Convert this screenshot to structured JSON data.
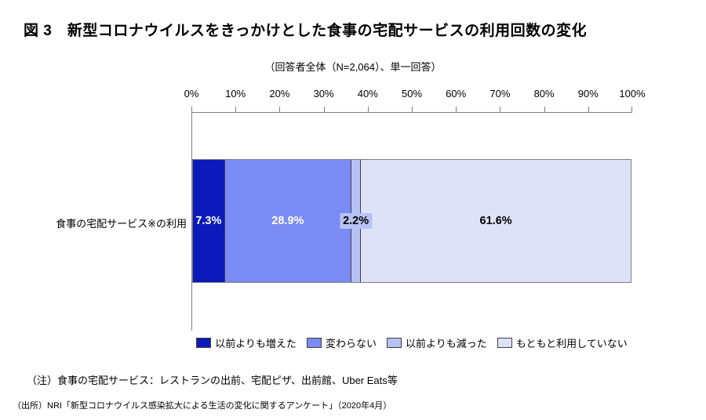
{
  "title": "図 3　新型コロナウイルスをきっかけとした食事の宅配サービスの利用回数の変化",
  "subtitle": "（回答者全体（N=2,064）、単一回答）",
  "note": "（注）食事の宅配サービス：レストランの出前、宅配ピザ、出前館、Uber Eats等",
  "source": "（出所）NRI「新型コロナウイルス感染拡大による生活の変化に関するアンケート」（2020年4月）",
  "chart_data": {
    "type": "bar",
    "orientation": "horizontal-stacked",
    "categories": [
      "食事の宅配サービス※の利用"
    ],
    "series": [
      {
        "name": "以前よりも増えた",
        "values": [
          7.3
        ],
        "color": "#0b1ab8",
        "label_color": "#ffffff",
        "label_chip": false
      },
      {
        "name": "変わらない",
        "values": [
          28.9
        ],
        "color": "#7b8bf4",
        "label_color": "#ffffff",
        "label_chip": false
      },
      {
        "name": "以前よりも減った",
        "values": [
          2.2
        ],
        "color": "#b7c2f4",
        "label_color": "#000000",
        "label_chip": true
      },
      {
        "name": "もともと利用していない",
        "values": [
          61.6
        ],
        "color": "#dee2f8",
        "label_color": "#000000",
        "label_chip": false
      }
    ],
    "value_suffix": "%",
    "x_ticks": [
      "0%",
      "10%",
      "20%",
      "30%",
      "40%",
      "50%",
      "60%",
      "70%",
      "80%",
      "90%",
      "100%"
    ],
    "xlim": [
      0,
      100
    ],
    "grid": false,
    "legend_position": "bottom"
  }
}
